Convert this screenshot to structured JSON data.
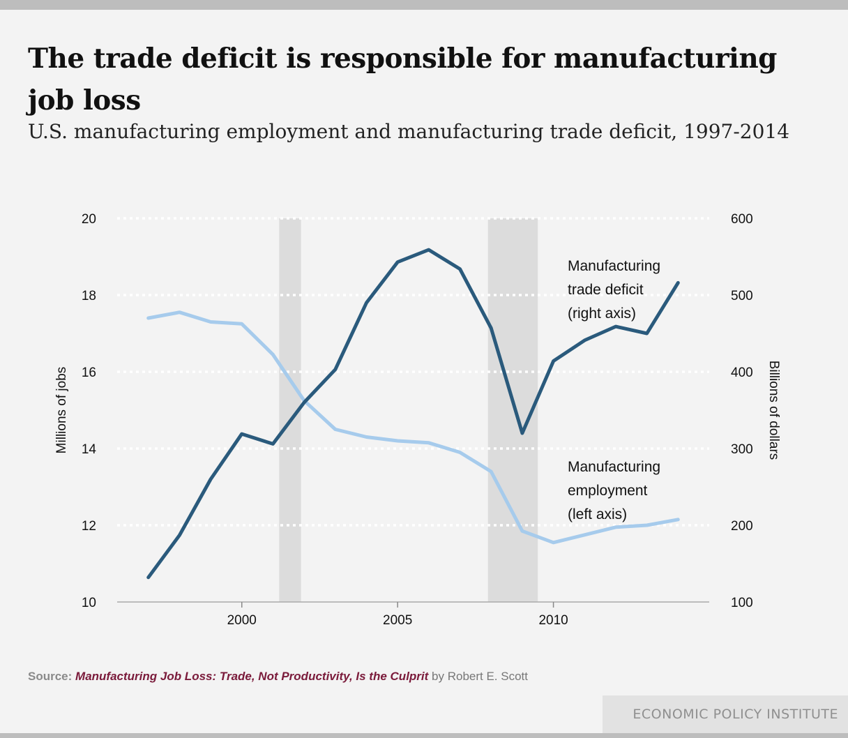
{
  "header": {
    "title": "The trade deficit is responsible for manufacturing job loss",
    "subtitle": "U.S. manufacturing employment and manufacturing trade deficit, 1997-2014"
  },
  "chart_data": {
    "type": "line",
    "xlim": [
      1996,
      2015
    ],
    "x_ticks": [
      "2000",
      "2005",
      "2010"
    ],
    "y_left": {
      "label": "Millions of jobs",
      "range": [
        10,
        20
      ],
      "ticks": [
        "10",
        "12",
        "14",
        "16",
        "18",
        "20"
      ]
    },
    "y_right": {
      "label": "Billions of dollars",
      "range": [
        100,
        600
      ],
      "ticks": [
        "100",
        "200",
        "300",
        "400",
        "500",
        "600"
      ]
    },
    "grid": "horizontal dotted",
    "recession_shading": [
      [
        2001.2,
        2001.9
      ],
      [
        2007.9,
        2009.5
      ]
    ],
    "series": [
      {
        "name": "Manufacturing employment (left axis)",
        "axis": "left",
        "color": "#a6cbec",
        "x": [
          1997,
          1998,
          1999,
          2000,
          2001,
          2002,
          2003,
          2004,
          2005,
          2006,
          2007,
          2008,
          2009,
          2010,
          2011,
          2012,
          2013,
          2014
        ],
        "y": [
          17.4,
          17.55,
          17.3,
          17.25,
          16.45,
          15.25,
          14.5,
          14.3,
          14.2,
          14.15,
          13.9,
          13.4,
          11.85,
          11.55,
          11.75,
          11.95,
          12.0,
          12.15
        ]
      },
      {
        "name": "Manufacturing trade deficit (right axis)",
        "axis": "right",
        "color": "#2a5a7c",
        "x": [
          1997,
          1998,
          1999,
          2000,
          2001,
          2002,
          2003,
          2004,
          2005,
          2006,
          2007,
          2008,
          2009,
          2010,
          2011,
          2012,
          2013,
          2014
        ],
        "y": [
          132,
          187,
          260,
          319,
          306,
          360,
          403,
          490,
          543,
          559,
          534,
          457,
          320,
          414,
          441,
          459,
          450,
          516
        ]
      }
    ],
    "annotations": [
      {
        "lines": [
          "Manufacturing",
          "trade deficit",
          "(right axis)"
        ]
      },
      {
        "lines": [
          "Manufacturing",
          "employment",
          "(left axis)"
        ]
      }
    ]
  },
  "source": {
    "label": "Source:",
    "title": "Manufacturing Job Loss: Trade, Not Productivity, Is the Culprit",
    "author": "by Robert E. Scott"
  },
  "footer": {
    "org": "ECONOMIC POLICY INSTITUTE"
  }
}
